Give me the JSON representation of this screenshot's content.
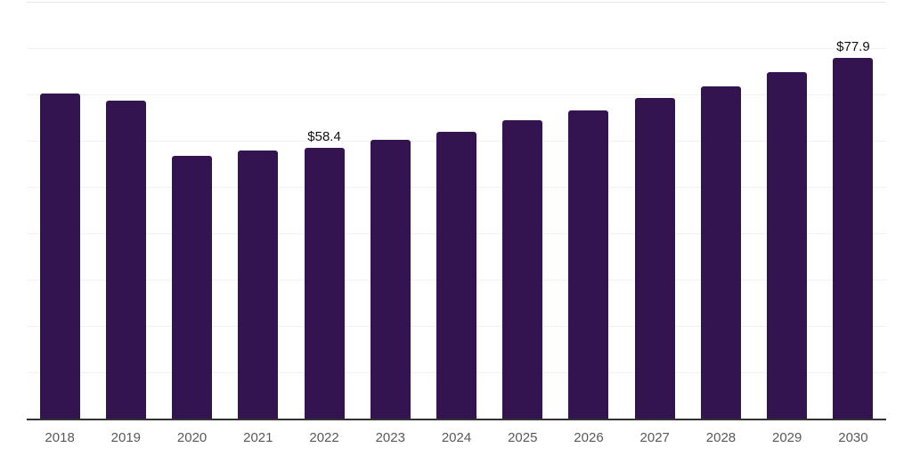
{
  "chart_data": {
    "type": "bar",
    "title": "",
    "xlabel": "",
    "ylabel": "",
    "categories": [
      "2018",
      "2019",
      "2020",
      "2021",
      "2022",
      "2023",
      "2024",
      "2025",
      "2026",
      "2027",
      "2028",
      "2029",
      "2030"
    ],
    "values": [
      70.1,
      68.7,
      56.7,
      57.8,
      58.4,
      60.1,
      62.0,
      64.4,
      66.5,
      69.2,
      71.7,
      74.9,
      77.9
    ],
    "point_labels": [
      "",
      "",
      "",
      "",
      "$58.4",
      "",
      "",
      "",
      "",
      "",
      "",
      "",
      "$77.9"
    ],
    "ylim": [
      0,
      90
    ],
    "gridline_step": 10,
    "grid": true,
    "legend_position": "none",
    "y_tick_labels_visible": false,
    "colors": {
      "bar": "#341450",
      "gridline": "#f2f2f2",
      "top_gridline": "#e7e7e7",
      "axis_line": "#333333",
      "tick_label": "#595959",
      "value_label": "#111111",
      "background": "#ffffff"
    }
  }
}
